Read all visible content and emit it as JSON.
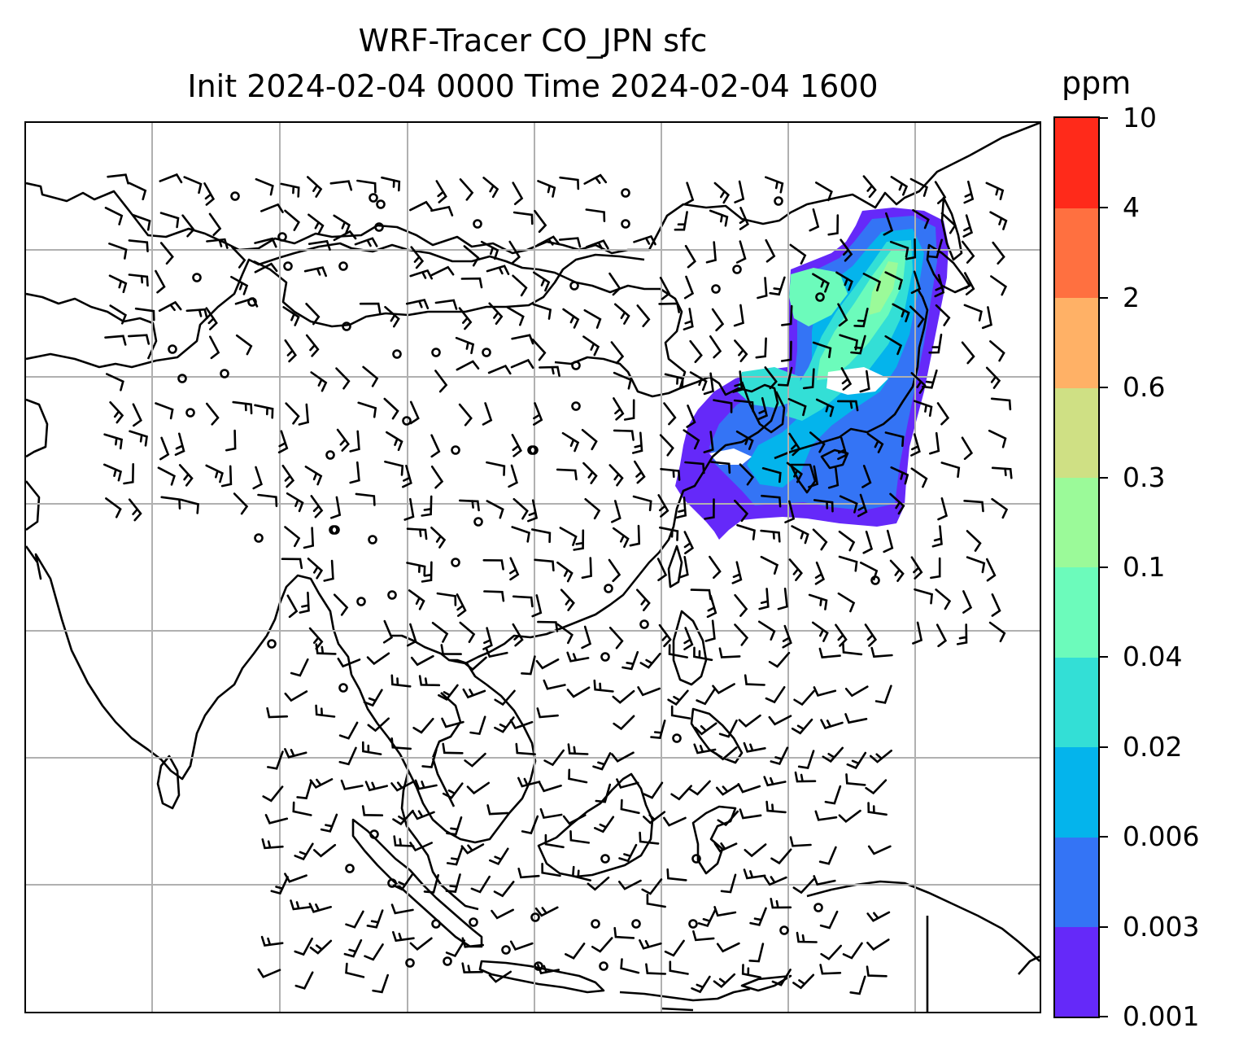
{
  "figure": {
    "title_line1": "WRF-Tracer CO_JPN sfc",
    "title_line2": "Init 2024-02-04 0000 Time 2024-02-04 1600"
  },
  "map": {
    "gridlines": true,
    "gridline_color": "#b0b0b0",
    "coastline_color": "#000000",
    "wind_barb_color": "#000000",
    "plume_region": "Japan, Korea, Sea of Japan and Northeast China"
  },
  "colorbar": {
    "unit": "ppm",
    "levels": [
      "0.001",
      "0.003",
      "0.006",
      "0.02",
      "0.04",
      "0.1",
      "0.3",
      "0.6",
      "2",
      "4",
      "10"
    ],
    "colors": [
      "#6529f9",
      "#3474f5",
      "#04b4ec",
      "#33dfd6",
      "#6cfbbb",
      "#9bfa99",
      "#cfe084",
      "#ffb166",
      "#ff7040",
      "#ff2a1a"
    ]
  }
}
